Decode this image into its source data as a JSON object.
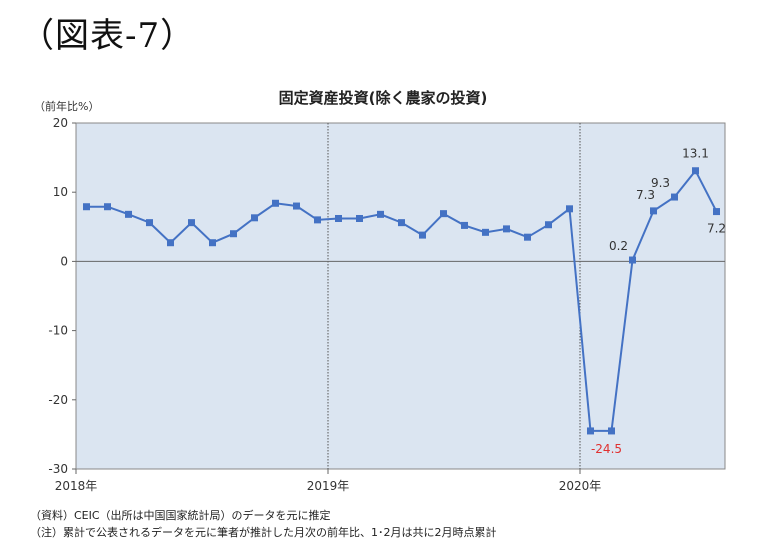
{
  "figure_label": "（図表-7）",
  "chart_data": {
    "type": "line",
    "title": "固定資産投資(除く農家の投資)",
    "unit_label": "（前年比%）",
    "ylim": [
      -30,
      20
    ],
    "y_ticks": [
      20,
      10,
      0,
      -10,
      -20,
      -30
    ],
    "grid": false,
    "year_labels": [
      "2018年",
      "2019年",
      "2020年"
    ],
    "colors": {
      "line": "#4472c4",
      "plot_bg": "#dbe5f1",
      "label": "#333333",
      "negative_label": "#e03030"
    },
    "series": [
      {
        "values": [
          7.9,
          7.9,
          6.8,
          5.6,
          2.7,
          5.6,
          2.7,
          4.0,
          6.3,
          8.4,
          8.0,
          6.0,
          6.2,
          6.2,
          6.8,
          5.6,
          3.8,
          6.9,
          5.2,
          4.2,
          4.7,
          3.5,
          5.3,
          7.6,
          -24.5,
          -24.5,
          0.2,
          7.3,
          9.3,
          13.1,
          7.2
        ]
      }
    ],
    "data_labels": [
      {
        "index": 25,
        "text": "-24.5"
      },
      {
        "index": 26,
        "text": "0.2"
      },
      {
        "index": 27,
        "text": "7.3"
      },
      {
        "index": 28,
        "text": "9.3"
      },
      {
        "index": 29,
        "text": "13.1"
      },
      {
        "index": 30,
        "text": "7.2"
      }
    ]
  },
  "notes": [
    "（資料）CEIC（出所は中国国家統計局）のデータを元に推定",
    "（注）累計で公表されるデータを元に筆者が推計した月次の前年比、1･2月は共に2月時点累計"
  ]
}
